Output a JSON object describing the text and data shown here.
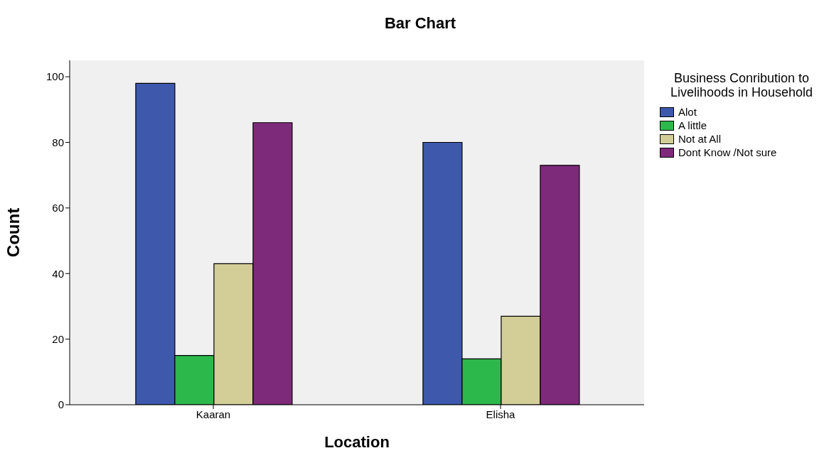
{
  "chart_data": {
    "type": "bar",
    "title": "Bar Chart",
    "xlabel": "Location",
    "ylabel": "Count",
    "legend_title": "Business Conribution to Livelihoods in Household",
    "categories": [
      "Kaaran",
      "Elisha"
    ],
    "series": [
      {
        "name": "Alot",
        "color": "#3e58ac",
        "values": [
          98,
          80
        ]
      },
      {
        "name": "A little",
        "color": "#2db84b",
        "values": [
          15,
          14
        ]
      },
      {
        "name": "Not at All",
        "color": "#d3ce97",
        "values": [
          43,
          27
        ]
      },
      {
        "name": "Dont Know /Not sure",
        "color": "#7e2a7b",
        "values": [
          86,
          73
        ]
      }
    ],
    "ylim": [
      0,
      105
    ],
    "yticks": [
      0,
      20,
      40,
      60,
      80,
      100
    ],
    "grid": false,
    "legend": "top right"
  }
}
